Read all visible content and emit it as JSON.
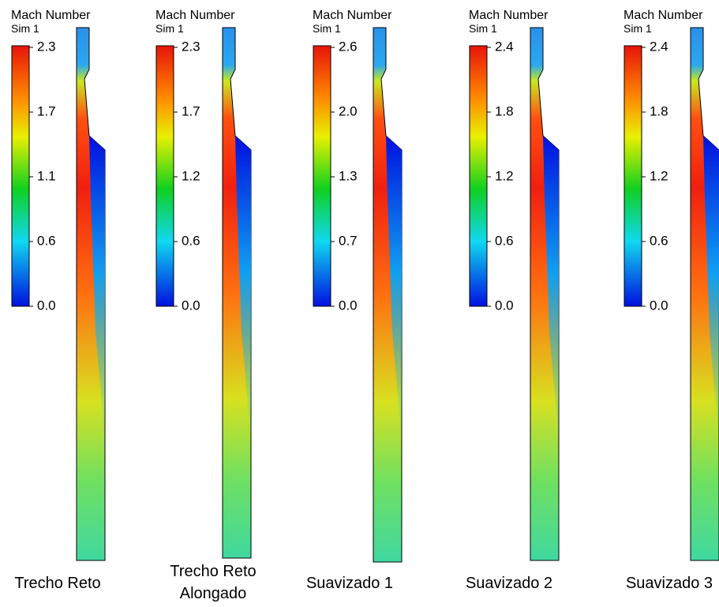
{
  "panels": [
    {
      "legend_title": "Mach Number",
      "legend_subtitle": "Sim 1",
      "ticks": [
        "2.3",
        "1.7",
        "1.1",
        "0.6",
        "0.0"
      ],
      "caption": [
        "Trecho Reto"
      ]
    },
    {
      "legend_title": "Mach Number",
      "legend_subtitle": "Sim 1",
      "ticks": [
        "2.3",
        "1.7",
        "1.2",
        "0.6",
        "0.0"
      ],
      "caption": [
        "Trecho Reto",
        "Alongado"
      ]
    },
    {
      "legend_title": "Mach Number",
      "legend_subtitle": "Sim 1",
      "ticks": [
        "2.6",
        "2.0",
        "1.3",
        "0.7",
        "0.0"
      ],
      "caption": [
        "Suavizado 1"
      ]
    },
    {
      "legend_title": "Mach Number",
      "legend_subtitle": "Sim 1",
      "ticks": [
        "2.4",
        "1.8",
        "1.2",
        "0.6",
        "0.0"
      ],
      "caption": [
        "Suavizado 2"
      ]
    },
    {
      "legend_title": "Mach Number",
      "legend_subtitle": "Sim 1",
      "ticks": [
        "2.4",
        "1.8",
        "1.2",
        "0.6",
        "0.0"
      ],
      "caption": [
        "Suavizado 3"
      ]
    }
  ]
}
